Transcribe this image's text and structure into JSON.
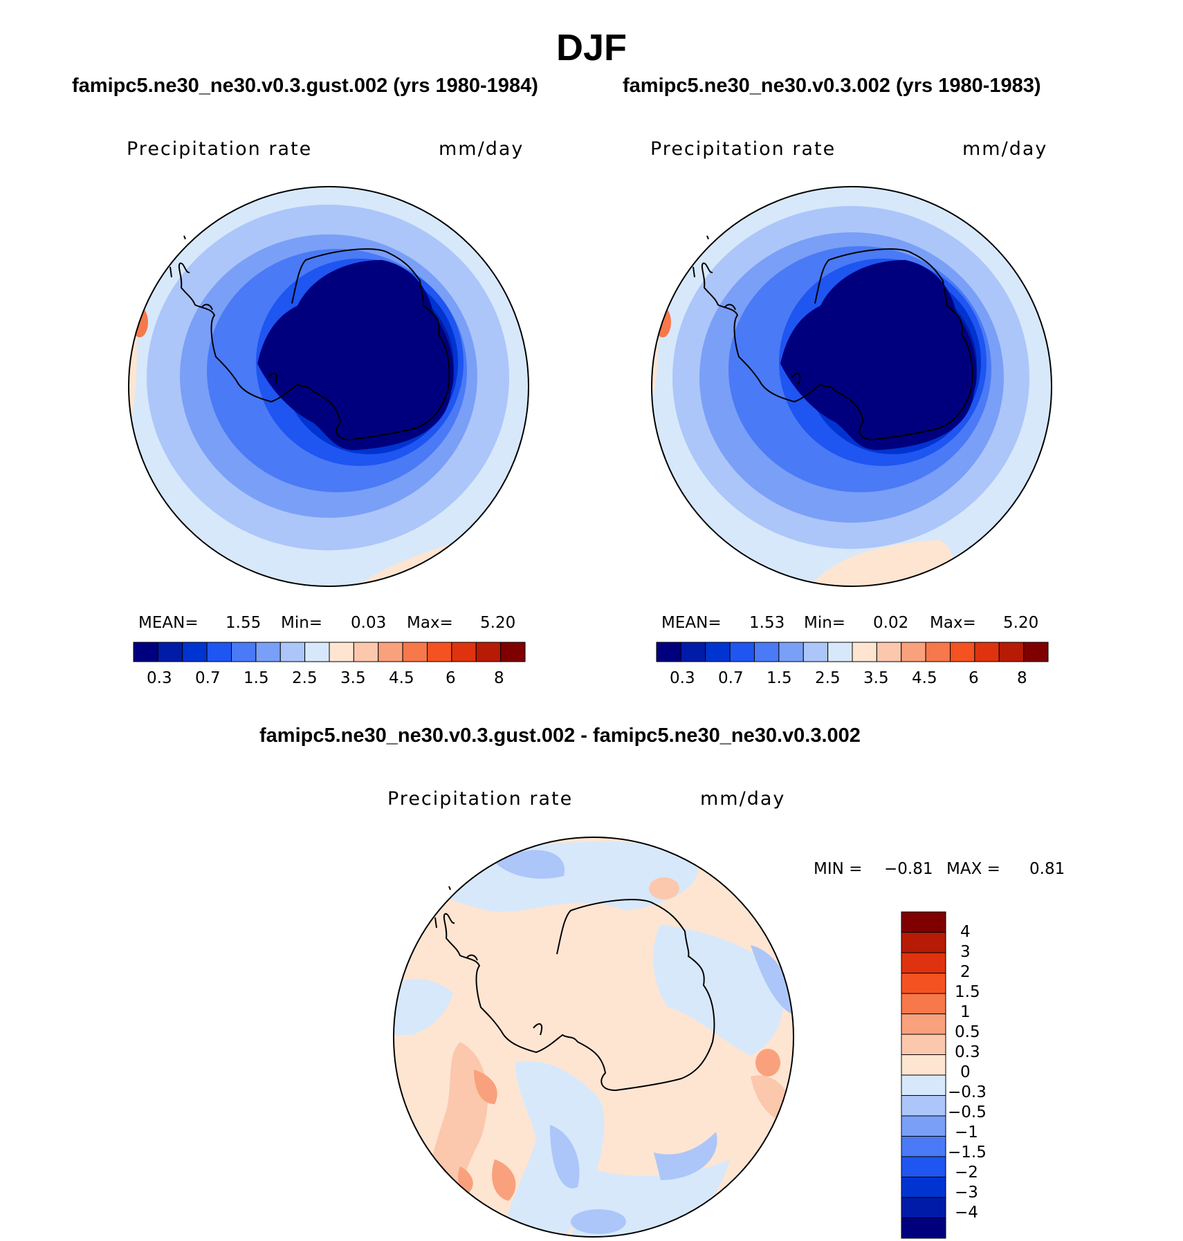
{
  "figure": {
    "title": "DJF",
    "panels": [
      {
        "case": "famipc5.ne30_ne30.v0.3.gust.002 (yrs 1980-1984)",
        "variable": "Precipitation rate",
        "units": "mm/day",
        "stats": {
          "mean_label": "MEAN=",
          "mean": "1.55",
          "min_label": "Min=",
          "min": "0.03",
          "max_label": "Max=",
          "max": "5.20"
        }
      },
      {
        "case": "famipc5.ne30_ne30.v0.3.002 (yrs 1980-1983)",
        "variable": "Precipitation rate",
        "units": "mm/day",
        "stats": {
          "mean_label": "MEAN=",
          "mean": "1.53",
          "min_label": "Min=",
          "min": "0.02",
          "max_label": "Max=",
          "max": "5.20"
        }
      }
    ],
    "diff_panel": {
      "title": "famipc5.ne30_ne30.v0.3.gust.002 - famipc5.ne30_ne30.v0.3.002",
      "variable": "Precipitation rate",
      "units": "mm/day",
      "stats": {
        "min_label": "MIN =",
        "min": "−0.81",
        "max_label": "MAX =",
        "max": "0.81"
      }
    }
  },
  "colorbar_abs": {
    "colors": [
      "#00007f",
      "#001ba7",
      "#0034d1",
      "#1f55f0",
      "#4a7af5",
      "#7a9ff7",
      "#acc6f9",
      "#d7e8fb",
      "#fde5d2",
      "#fbc8ad",
      "#f9a17d",
      "#f7784a",
      "#f55222",
      "#de330e",
      "#b71a05",
      "#7f0000"
    ],
    "tick_labels": [
      "0.3",
      "0.7",
      "1.5",
      "2.5",
      "3.5",
      "4.5",
      "6",
      "8"
    ]
  },
  "colorbar_diff": {
    "colors": [
      "#00007f",
      "#001ba7",
      "#0034d1",
      "#1f55f0",
      "#4a7af5",
      "#7a9ff7",
      "#acc6f9",
      "#d7e8fb",
      "#fde5d2",
      "#fbc8ad",
      "#f9a17d",
      "#f7784a",
      "#f55222",
      "#de330e",
      "#b71a05",
      "#7f0000"
    ],
    "tick_labels": [
      "4",
      "3",
      "2",
      "1.5",
      "1",
      "0.5",
      "0.3",
      "0",
      "−0.3",
      "−0.5",
      "−1",
      "−1.5",
      "−2",
      "−3",
      "−4"
    ]
  }
}
